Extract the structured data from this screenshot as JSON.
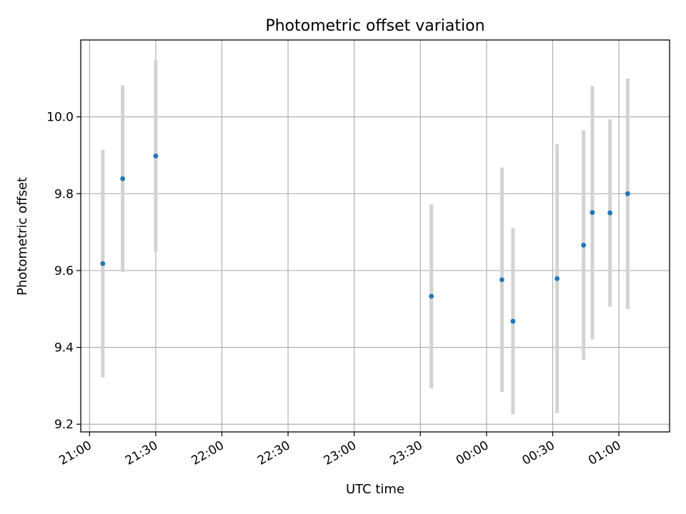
{
  "chart_data": {
    "type": "scatter",
    "title": "Photometric offset variation",
    "xlabel": "UTC time",
    "ylabel": "Photometric offset",
    "x_ticks": [
      "21:00",
      "21:30",
      "22:00",
      "22:30",
      "23:00",
      "23:30",
      "00:00",
      "00:30",
      "01:00"
    ],
    "y_ticks": [
      "9.2",
      "9.4",
      "9.6",
      "9.8",
      "10.0"
    ],
    "ylim": [
      9.18,
      10.2
    ],
    "xlim": [
      "20:56",
      "01:23"
    ],
    "grid": true,
    "series": [
      {
        "points": [
          {
            "x": "21:06",
            "y": 9.618,
            "err_low": 9.322,
            "err_high": 9.914
          },
          {
            "x": "21:15",
            "y": 9.839,
            "err_low": 9.596,
            "err_high": 10.082
          },
          {
            "x": "21:30",
            "y": 9.898,
            "err_low": 9.648,
            "err_high": 10.148
          },
          {
            "x": "23:35",
            "y": 9.533,
            "err_low": 9.293,
            "err_high": 9.772
          },
          {
            "x": "00:07",
            "y": 9.576,
            "err_low": 9.284,
            "err_high": 9.868
          },
          {
            "x": "00:12",
            "y": 9.468,
            "err_low": 9.226,
            "err_high": 9.71
          },
          {
            "x": "00:32",
            "y": 9.579,
            "err_low": 9.229,
            "err_high": 9.929
          },
          {
            "x": "00:44",
            "y": 9.666,
            "err_low": 9.368,
            "err_high": 9.965
          },
          {
            "x": "00:48",
            "y": 9.751,
            "err_low": 9.421,
            "err_high": 10.08
          },
          {
            "x": "00:56",
            "y": 9.75,
            "err_low": 9.506,
            "err_high": 9.993
          },
          {
            "x": "01:04",
            "y": 9.8,
            "err_low": 9.5,
            "err_high": 10.1
          }
        ]
      }
    ],
    "colors": {
      "marker": "#1f77b4",
      "errorbar": "#d3d3d3",
      "grid": "#b0b0b0"
    }
  }
}
